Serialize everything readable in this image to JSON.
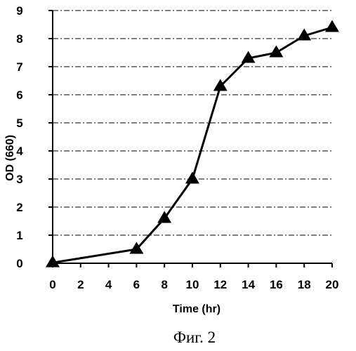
{
  "chart_data": {
    "type": "line",
    "x": [
      0,
      6,
      8,
      10,
      12,
      14,
      16,
      18,
      20
    ],
    "series": [
      {
        "values": [
          0.02,
          0.5,
          1.6,
          3.0,
          6.3,
          7.3,
          7.5,
          8.1,
          8.4
        ],
        "color": "#000000",
        "marker": "triangle"
      }
    ],
    "xlabel": "Time (hr)",
    "ylabel": "OD (660)",
    "xlim": [
      0,
      20
    ],
    "ylim": [
      0,
      9
    ],
    "xticks": [
      0,
      2,
      4,
      6,
      8,
      10,
      12,
      14,
      16,
      18,
      20
    ],
    "yticks": [
      0,
      1,
      2,
      3,
      4,
      5,
      6,
      7,
      8,
      9
    ],
    "grid": "horizontal dash-dot",
    "caption": "Фиг. 2"
  }
}
